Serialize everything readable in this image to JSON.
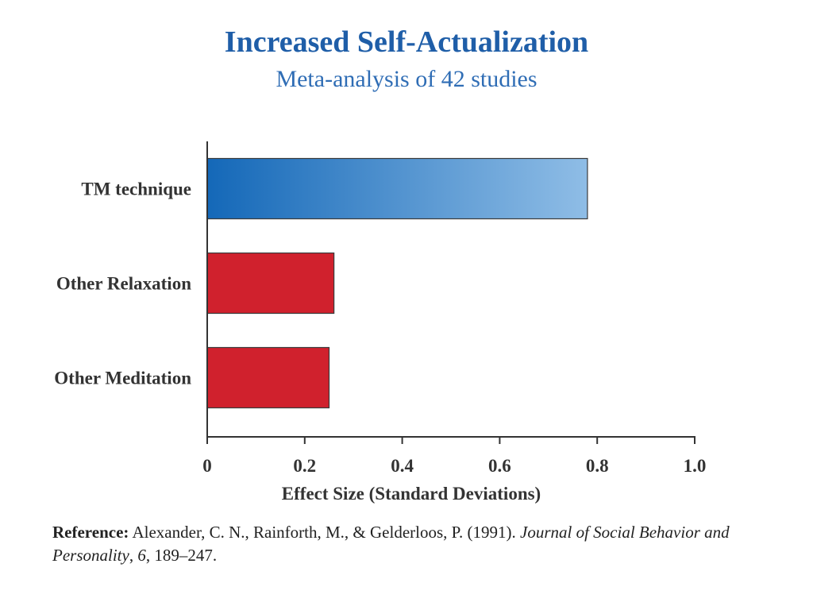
{
  "title": "Increased Self-Actualization",
  "subtitle": "Meta-analysis of 42 studies",
  "colors": {
    "title": "#1f5ea8",
    "tm_gradient_start": "#1468b8",
    "tm_gradient_end": "#8fbde6",
    "other_bar": "#d0212d",
    "axis": "#333333",
    "text": "#333333"
  },
  "chart_data": {
    "type": "bar",
    "orientation": "horizontal",
    "title": "Increased Self-Actualization",
    "subtitle": "Meta-analysis of 42 studies",
    "categories": [
      "TM technique",
      "Other Relaxation",
      "Other Meditation"
    ],
    "values": [
      0.78,
      0.26,
      0.25
    ],
    "xlabel": "Effect Size (Standard Deviations)",
    "ylabel": "",
    "xlim": [
      0,
      1.0
    ],
    "ticks": [
      0,
      0.2,
      0.4,
      0.6,
      0.8,
      1.0
    ],
    "tick_labels": [
      "0",
      "0.2",
      "0.4",
      "0.6",
      "0.8",
      "1.0"
    ],
    "grid": false,
    "legend": "none"
  },
  "reference": {
    "label": "Reference:",
    "authors": " Alexander, C. N., Rainforth, M., & Gelderloos, P. (1991). ",
    "journal": "Journal of Social Behavior and Personality",
    "comma1": ", ",
    "volume": "6",
    "pages": ", 189–247."
  }
}
